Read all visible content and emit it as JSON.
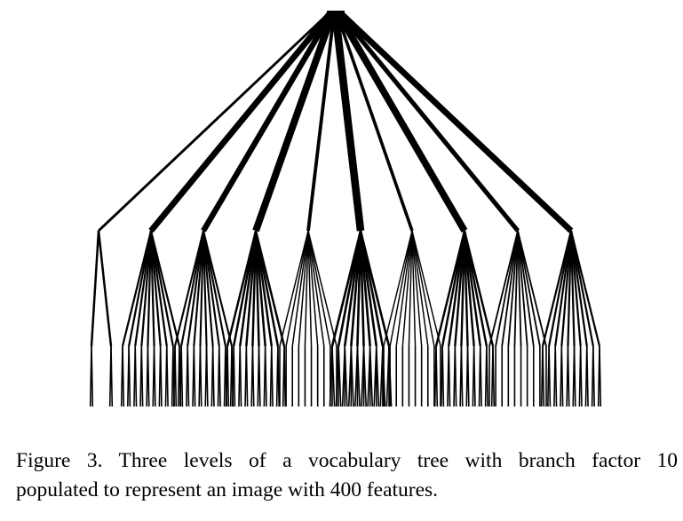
{
  "caption": {
    "line1": "Figure 3. Three levels of a vocabulary tree with branch factor 10",
    "line2": "populated to represent an image with 400 features."
  },
  "tree": {
    "branch_factor": 10,
    "levels": 3,
    "feature_count": 400,
    "stroke_color": "#000000",
    "level1_feature_counts": [
      12,
      48,
      44,
      58,
      20,
      64,
      18,
      56,
      32,
      48
    ],
    "level2_populated_children": [
      [
        1,
        0,
        0,
        0,
        0,
        0,
        0,
        0,
        0,
        1
      ],
      [
        1,
        1,
        1,
        1,
        1,
        1,
        1,
        1,
        1,
        1
      ],
      [
        1,
        1,
        1,
        1,
        1,
        1,
        1,
        1,
        1,
        1
      ],
      [
        1,
        1,
        1,
        1,
        1,
        1,
        1,
        1,
        1,
        1
      ],
      [
        1,
        1,
        1,
        1,
        1,
        1,
        1,
        1,
        1,
        1
      ],
      [
        1,
        1,
        1,
        1,
        1,
        1,
        1,
        1,
        1,
        1
      ],
      [
        1,
        1,
        1,
        1,
        1,
        1,
        1,
        1,
        1,
        1
      ],
      [
        1,
        1,
        1,
        1,
        1,
        1,
        1,
        1,
        1,
        1
      ],
      [
        1,
        1,
        1,
        1,
        1,
        1,
        1,
        1,
        1,
        1
      ],
      [
        1,
        1,
        1,
        1,
        1,
        1,
        1,
        1,
        1,
        1
      ]
    ]
  }
}
